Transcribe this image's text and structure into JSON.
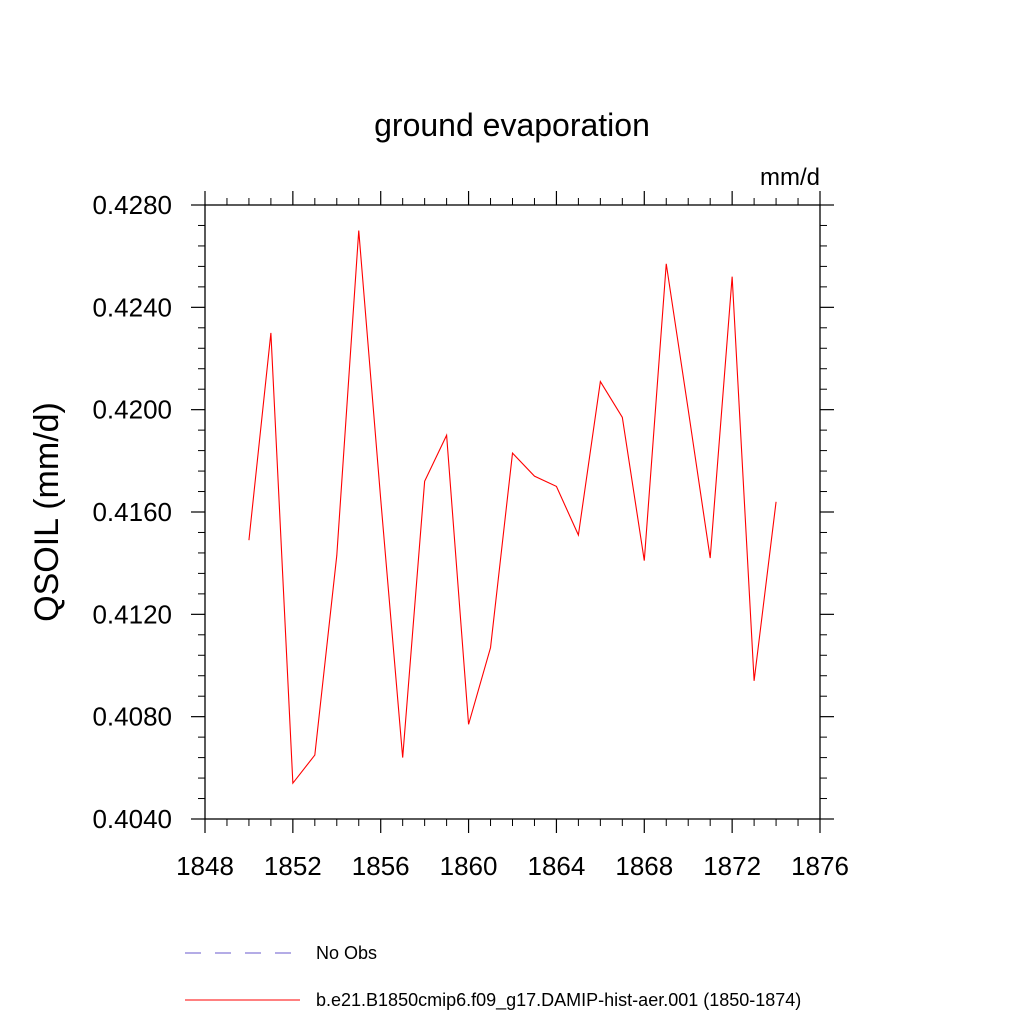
{
  "chart_data": {
    "type": "line",
    "title": "ground evaporation",
    "units_label": "mm/d",
    "ylabel": "QSOIL  (mm/d)",
    "xlabel": "",
    "xlim": [
      1848,
      1876
    ],
    "ylim": [
      0.404,
      0.428
    ],
    "x_ticks": [
      "1848",
      "1852",
      "1856",
      "1860",
      "1864",
      "1868",
      "1872",
      "1876"
    ],
    "y_ticks": [
      "0.4040",
      "0.4080",
      "0.4120",
      "0.4160",
      "0.4200",
      "0.4240",
      "0.4280"
    ],
    "x": [
      1850,
      1851,
      1852,
      1853,
      1854,
      1855,
      1856,
      1857,
      1858,
      1859,
      1860,
      1861,
      1862,
      1863,
      1864,
      1865,
      1866,
      1867,
      1868,
      1869,
      1870,
      1871,
      1872,
      1873,
      1874
    ],
    "series": [
      {
        "name": "b.e21.B1850cmip6.f09_g17.DAMIP-hist-aer.001 (1850-1874)",
        "color": "#ff0000",
        "values": [
          0.4149,
          0.423,
          0.4054,
          0.4065,
          0.4143,
          0.427,
          0.4165,
          0.4064,
          0.4172,
          0.419,
          0.4077,
          0.4107,
          0.4183,
          0.4174,
          0.417,
          0.4151,
          0.4211,
          0.4197,
          0.4141,
          0.4257,
          0.42,
          0.4142,
          0.4252,
          0.4094,
          0.4164
        ]
      }
    ],
    "legend": [
      {
        "label": "No Obs",
        "color": "#6a5acd",
        "style": "dashed"
      },
      {
        "label": "b.e21.B1850cmip6.f09_g17.DAMIP-hist-aer.001 (1850-1874)",
        "color": "#ff0000",
        "style": "solid"
      }
    ],
    "legend_position": "bottom",
    "grid": false
  }
}
